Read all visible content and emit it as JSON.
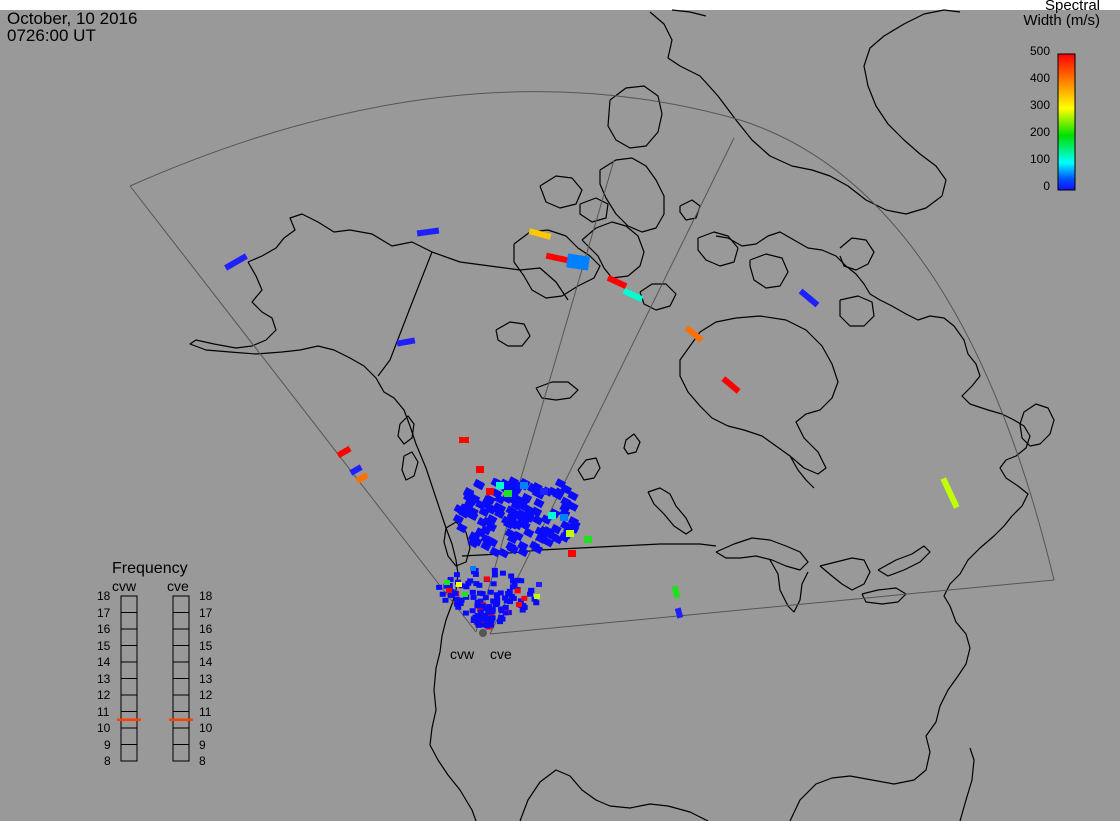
{
  "header": {
    "date": "October, 10 2016",
    "time": "0726:00 UT"
  },
  "colorbar": {
    "title_line1": "Spectral",
    "title_line2": "Width (m/s)",
    "ticks": [
      "500",
      "400",
      "300",
      "200",
      "100",
      "0"
    ],
    "colors": [
      "#ff0000",
      "#ff8000",
      "#ffff00",
      "#00e000",
      "#00ffff",
      "#0050ff",
      "#1010ff"
    ]
  },
  "radars": {
    "west_label": "cvw",
    "east_label": "cve"
  },
  "frequency": {
    "title": "Frequency",
    "columns": [
      {
        "label": "cvw",
        "value": 10.5
      },
      {
        "label": "cve",
        "value": 10.5
      }
    ],
    "scale": [
      "18",
      "17",
      "16",
      "15",
      "14",
      "13",
      "12",
      "11",
      "10",
      "9",
      "8"
    ],
    "marker_color": "#ff4000"
  },
  "colors": {
    "background": "#999999",
    "coastline": "#000000",
    "fov": "#555555"
  }
}
